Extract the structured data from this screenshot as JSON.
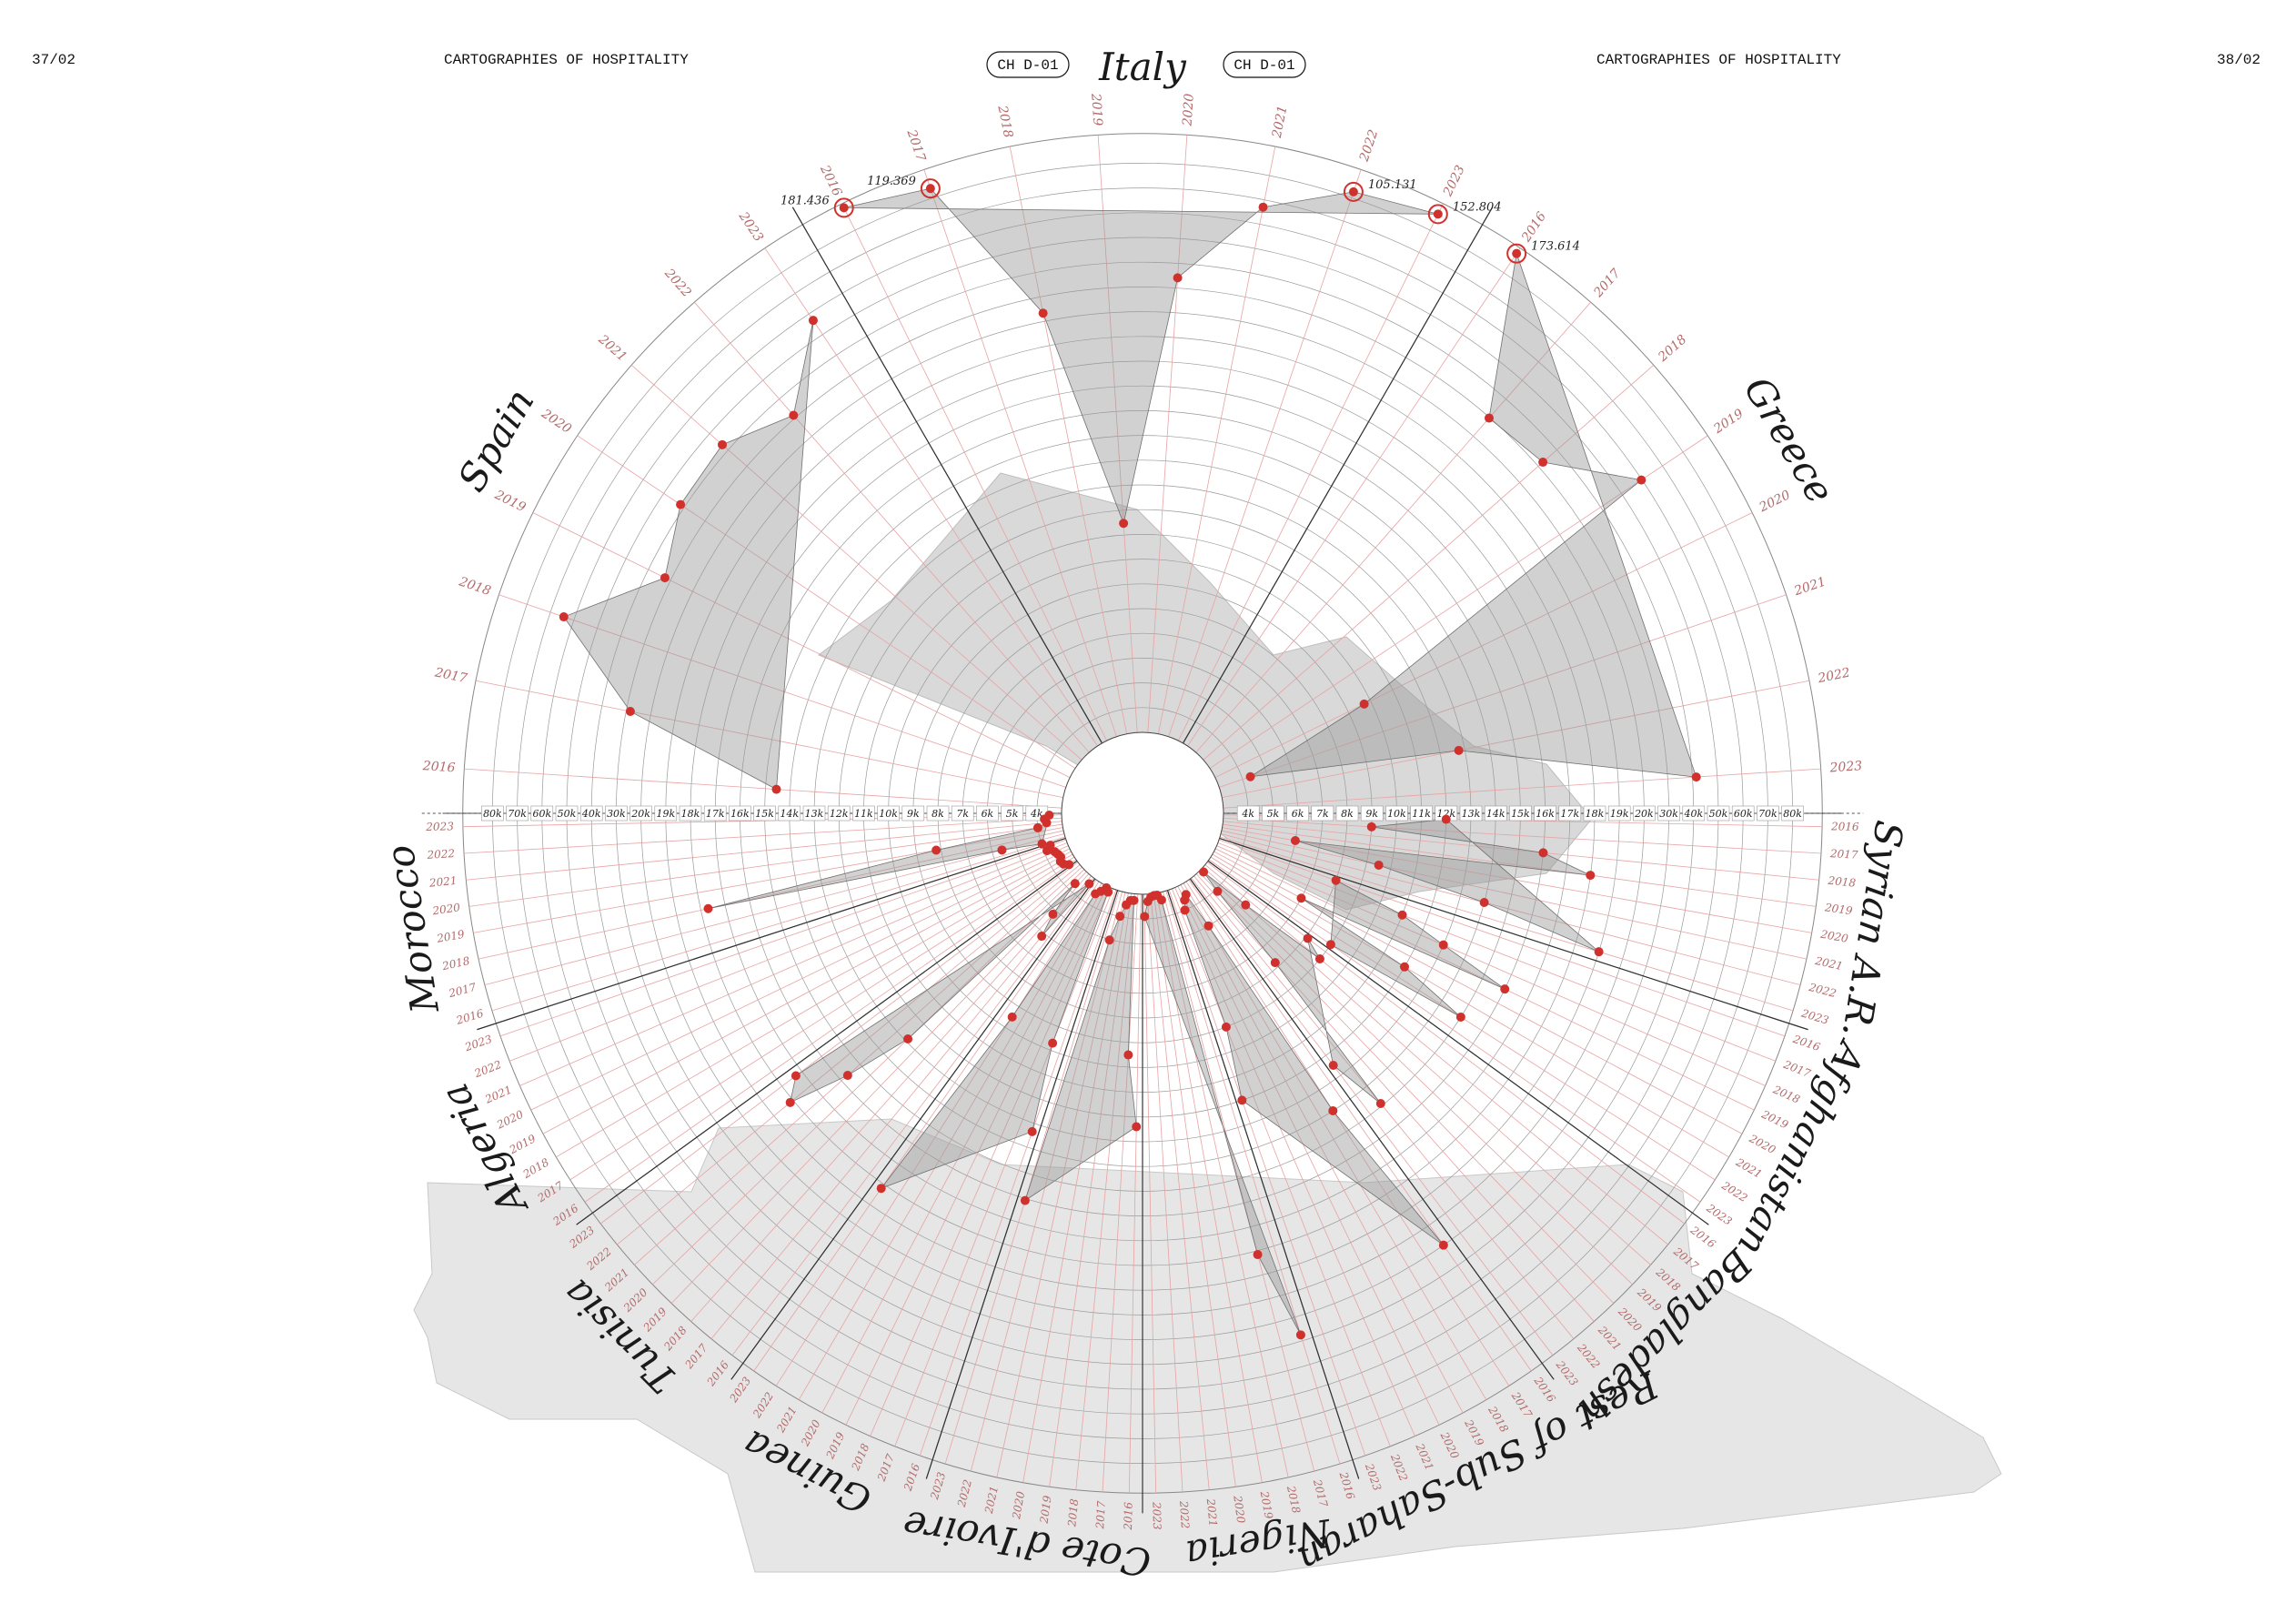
{
  "header": {
    "left_page": "37/02",
    "left_title": "CARTOGRAPHIES OF HOSPITALITY",
    "left_code": "CH D-01",
    "right_code": "CH D-01",
    "right_title": "CARTOGRAPHIES OF HOSPITALITY",
    "right_page": "38/02"
  },
  "chart_data": {
    "type": "radial",
    "categories": [
      "2016",
      "2017",
      "2018",
      "2019",
      "2020",
      "2021",
      "2022",
      "2023"
    ],
    "ylim": [
      0,
      200000
    ],
    "yticks": [
      {
        "value": 4000,
        "label": "4k"
      },
      {
        "value": 5000,
        "label": "5k"
      },
      {
        "value": 6000,
        "label": "6k"
      },
      {
        "value": 7000,
        "label": "7k"
      },
      {
        "value": 8000,
        "label": "8k"
      },
      {
        "value": 9000,
        "label": "9k"
      },
      {
        "value": 10000,
        "label": "10k"
      },
      {
        "value": 11000,
        "label": "11k"
      },
      {
        "value": 12000,
        "label": "12k"
      },
      {
        "value": 13000,
        "label": "13k"
      },
      {
        "value": 14000,
        "label": "14k"
      },
      {
        "value": 15000,
        "label": "15k"
      },
      {
        "value": 16000,
        "label": "16k"
      },
      {
        "value": 17000,
        "label": "17k"
      },
      {
        "value": 18000,
        "label": "18k"
      },
      {
        "value": 19000,
        "label": "19k"
      },
      {
        "value": 20000,
        "label": "20k"
      },
      {
        "value": 30000,
        "label": "30k"
      },
      {
        "value": 40000,
        "label": "40k"
      },
      {
        "value": 50000,
        "label": "50k"
      },
      {
        "value": 60000,
        "label": "60k"
      },
      {
        "value": 70000,
        "label": "70k"
      },
      {
        "value": 80000,
        "label": "80k"
      }
    ],
    "grid": true,
    "color": "#d0312d",
    "fill": "#9a9a9a",
    "destinations": [
      {
        "name": "Spain",
        "values": [
          14558,
          28349,
          64298,
          32513,
          41861,
          43197,
          31219,
          56852
        ]
      },
      {
        "name": "Italy",
        "values": [
          181436,
          119369,
          23370,
          11471,
          34154,
          67040,
          105131,
          152804
        ],
        "value_labels": [
          "181.436",
          "119.369",
          null,
          null,
          null,
          null,
          "105.131",
          "152.804"
        ]
      },
      {
        "name": "Greece",
        "values": [
          173614,
          29718,
          32494,
          59726,
          9714,
          4331,
          12758,
          41561
        ],
        "value_labels": [
          "173.614",
          null,
          null,
          null,
          null,
          null,
          null,
          null
        ]
      }
    ],
    "origins": [
      {
        "name": "Syrian A.R.",
        "values": [
          12000,
          9000,
          16000,
          18000,
          6000,
          9500,
          14000,
          19000
        ]
      },
      {
        "name": "Afghanistan",
        "values": [
          8000,
          11000,
          13000,
          16000,
          7000,
          12000,
          15000,
          9000
        ]
      },
      {
        "name": "Bangladesh",
        "values": [
          8100,
          9000,
          5300,
          600,
          4100,
          7800,
          14900,
          12500
        ]
      },
      {
        "name": "Rest of Sub-Saharan",
        "values": [
          30000,
          14000,
          5000,
          1800,
          2500,
          4000,
          9000,
          12000
        ]
      },
      {
        "name": "Nigeria",
        "values": [
          37551,
          18158,
          1250,
          350,
          330,
          510,
          1200,
          3600
        ]
      },
      {
        "name": "Cote d'Ivoire",
        "values": [
          12396,
          9507,
          1064,
          1139,
          1950,
          3950,
          5020,
          16080
        ]
      },
      {
        "name": "Guinea",
        "values": [
          13342,
          9701,
          810,
          302,
          1200,
          2000,
          9500,
          18200
        ]
      },
      {
        "name": "Tunisia",
        "values": [
          1207,
          6151,
          5181,
          2654,
          12883,
          15671,
          18148,
          17300
        ]
      },
      {
        "name": "Algeria",
        "values": [
          1400,
          2100,
          2300,
          1900,
          2100,
          2400,
          3500,
          2700
        ]
      },
      {
        "name": "Morocco",
        "values": [
          3900,
          5600,
          17700,
          8200,
          4000,
          2500,
          2800,
          2000
        ]
      }
    ]
  }
}
